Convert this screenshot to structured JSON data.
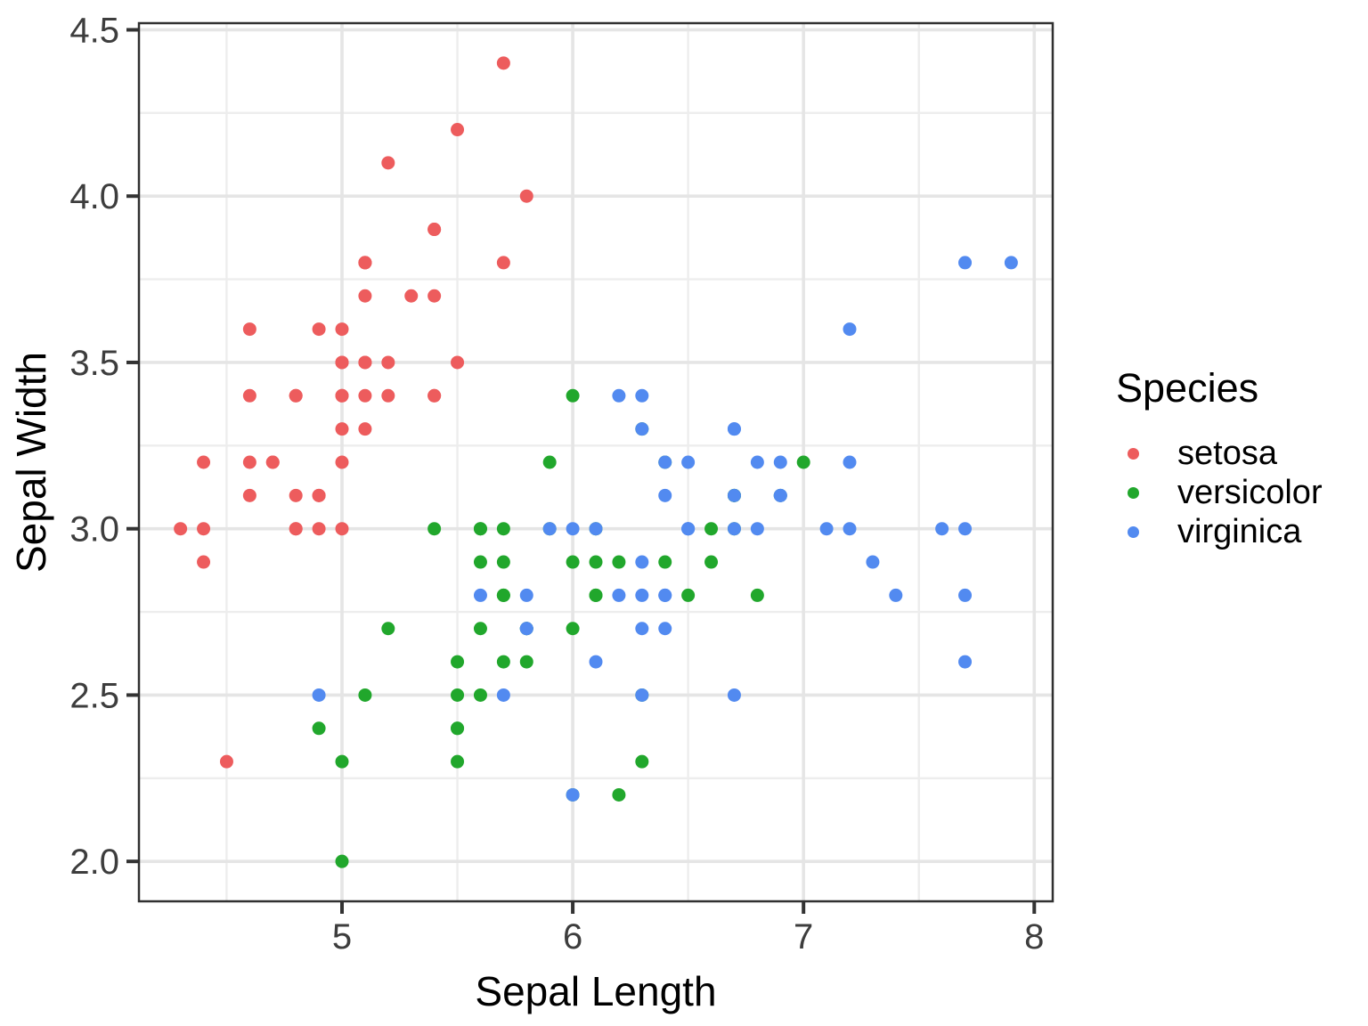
{
  "chart_data": {
    "type": "scatter",
    "xlabel": "Sepal Length",
    "ylabel": "Sepal Width",
    "legend_title": "Species",
    "legend_position": "right",
    "grid": "major+minor",
    "xlim": [
      4.12,
      8.08
    ],
    "ylim": [
      1.88,
      4.52
    ],
    "x_ticks": {
      "values": [
        5,
        6,
        7,
        8
      ],
      "labels": [
        "5",
        "6",
        "7",
        "8"
      ]
    },
    "y_ticks": {
      "values": [
        2.0,
        2.5,
        3.0,
        3.5,
        4.0,
        4.5
      ],
      "labels": [
        "2.0",
        "2.5",
        "3.0",
        "3.5",
        "4.0",
        "4.5"
      ]
    },
    "x_minor": [
      4.5,
      5.5,
      6.5,
      7.5
    ],
    "y_minor": [
      2.25,
      2.75,
      3.25,
      3.75,
      4.25
    ],
    "series": [
      {
        "name": "setosa",
        "color": "#ED5C5D",
        "points": [
          [
            5.1,
            3.5
          ],
          [
            4.9,
            3.0
          ],
          [
            4.7,
            3.2
          ],
          [
            4.6,
            3.1
          ],
          [
            5.0,
            3.6
          ],
          [
            5.4,
            3.9
          ],
          [
            4.6,
            3.4
          ],
          [
            5.0,
            3.4
          ],
          [
            4.4,
            2.9
          ],
          [
            4.9,
            3.1
          ],
          [
            5.4,
            3.7
          ],
          [
            4.8,
            3.4
          ],
          [
            4.8,
            3.0
          ],
          [
            4.3,
            3.0
          ],
          [
            5.8,
            4.0
          ],
          [
            5.7,
            4.4
          ],
          [
            5.4,
            3.9
          ],
          [
            5.1,
            3.5
          ],
          [
            5.7,
            3.8
          ],
          [
            5.1,
            3.8
          ],
          [
            5.4,
            3.4
          ],
          [
            5.1,
            3.7
          ],
          [
            4.6,
            3.6
          ],
          [
            5.1,
            3.3
          ],
          [
            4.8,
            3.4
          ],
          [
            5.0,
            3.0
          ],
          [
            5.0,
            3.4
          ],
          [
            5.2,
            3.5
          ],
          [
            5.2,
            3.4
          ],
          [
            4.7,
            3.2
          ],
          [
            4.8,
            3.1
          ],
          [
            5.4,
            3.4
          ],
          [
            5.2,
            4.1
          ],
          [
            5.5,
            4.2
          ],
          [
            4.9,
            3.1
          ],
          [
            5.0,
            3.2
          ],
          [
            5.5,
            3.5
          ],
          [
            4.9,
            3.6
          ],
          [
            4.4,
            3.0
          ],
          [
            5.1,
            3.4
          ],
          [
            5.0,
            3.5
          ],
          [
            4.5,
            2.3
          ],
          [
            4.4,
            3.2
          ],
          [
            5.0,
            3.5
          ],
          [
            5.1,
            3.8
          ],
          [
            4.8,
            3.0
          ],
          [
            5.1,
            3.8
          ],
          [
            4.6,
            3.2
          ],
          [
            5.3,
            3.7
          ],
          [
            5.0,
            3.3
          ]
        ]
      },
      {
        "name": "versicolor",
        "color": "#21A72C",
        "points": [
          [
            7.0,
            3.2
          ],
          [
            6.4,
            3.2
          ],
          [
            6.9,
            3.1
          ],
          [
            5.5,
            2.3
          ],
          [
            6.5,
            2.8
          ],
          [
            5.7,
            2.8
          ],
          [
            6.3,
            3.3
          ],
          [
            4.9,
            2.4
          ],
          [
            6.6,
            2.9
          ],
          [
            5.2,
            2.7
          ],
          [
            5.0,
            2.0
          ],
          [
            5.9,
            3.0
          ],
          [
            6.0,
            2.2
          ],
          [
            6.1,
            2.9
          ],
          [
            5.6,
            2.9
          ],
          [
            6.7,
            3.1
          ],
          [
            5.6,
            3.0
          ],
          [
            5.8,
            2.7
          ],
          [
            6.2,
            2.2
          ],
          [
            5.6,
            2.5
          ],
          [
            5.9,
            3.2
          ],
          [
            6.1,
            2.8
          ],
          [
            6.3,
            2.5
          ],
          [
            6.1,
            2.8
          ],
          [
            6.4,
            2.9
          ],
          [
            6.6,
            3.0
          ],
          [
            6.8,
            2.8
          ],
          [
            6.7,
            3.0
          ],
          [
            6.0,
            2.9
          ],
          [
            5.7,
            2.6
          ],
          [
            5.5,
            2.4
          ],
          [
            5.5,
            2.4
          ],
          [
            5.8,
            2.7
          ],
          [
            6.0,
            2.7
          ],
          [
            5.4,
            3.0
          ],
          [
            6.0,
            3.4
          ],
          [
            6.7,
            3.1
          ],
          [
            6.3,
            2.3
          ],
          [
            5.6,
            3.0
          ],
          [
            5.5,
            2.5
          ],
          [
            5.5,
            2.6
          ],
          [
            6.1,
            3.0
          ],
          [
            5.8,
            2.6
          ],
          [
            5.0,
            2.3
          ],
          [
            5.6,
            2.7
          ],
          [
            5.7,
            3.0
          ],
          [
            5.7,
            2.9
          ],
          [
            6.2,
            2.9
          ],
          [
            5.1,
            2.5
          ],
          [
            5.7,
            2.8
          ]
        ]
      },
      {
        "name": "virginica",
        "color": "#528AF0",
        "points": [
          [
            6.3,
            3.3
          ],
          [
            5.8,
            2.7
          ],
          [
            7.1,
            3.0
          ],
          [
            6.3,
            2.9
          ],
          [
            6.5,
            3.0
          ],
          [
            7.6,
            3.0
          ],
          [
            4.9,
            2.5
          ],
          [
            7.3,
            2.9
          ],
          [
            6.7,
            2.5
          ],
          [
            7.2,
            3.6
          ],
          [
            6.5,
            3.2
          ],
          [
            6.4,
            2.7
          ],
          [
            6.8,
            3.0
          ],
          [
            5.7,
            2.5
          ],
          [
            5.8,
            2.8
          ],
          [
            6.4,
            3.2
          ],
          [
            6.5,
            3.0
          ],
          [
            7.7,
            3.8
          ],
          [
            7.7,
            2.6
          ],
          [
            6.0,
            2.2
          ],
          [
            6.9,
            3.2
          ],
          [
            5.6,
            2.8
          ],
          [
            7.7,
            2.8
          ],
          [
            6.3,
            2.7
          ],
          [
            6.7,
            3.3
          ],
          [
            7.2,
            3.2
          ],
          [
            6.2,
            2.8
          ],
          [
            6.1,
            3.0
          ],
          [
            6.4,
            2.8
          ],
          [
            7.2,
            3.0
          ],
          [
            7.4,
            2.8
          ],
          [
            7.9,
            3.8
          ],
          [
            6.4,
            2.8
          ],
          [
            6.3,
            2.8
          ],
          [
            6.1,
            2.6
          ],
          [
            7.7,
            3.0
          ],
          [
            6.3,
            3.4
          ],
          [
            6.4,
            3.1
          ],
          [
            6.0,
            3.0
          ],
          [
            6.9,
            3.1
          ],
          [
            6.7,
            3.1
          ],
          [
            6.9,
            3.1
          ],
          [
            5.8,
            2.7
          ],
          [
            6.8,
            3.2
          ],
          [
            6.7,
            3.3
          ],
          [
            6.7,
            3.0
          ],
          [
            6.3,
            2.5
          ],
          [
            6.5,
            3.0
          ],
          [
            6.2,
            3.4
          ],
          [
            5.9,
            3.0
          ]
        ]
      }
    ]
  },
  "style": {
    "background": "#FFFFFF",
    "panel_background": "#FFFFFF",
    "panel_border": "#303030",
    "grid_major": "#E5E5E5",
    "grid_minor": "#EDEDED",
    "tick_color": "#333333",
    "axis_text_color": "#3D3D3D",
    "title_color": "#000000"
  }
}
